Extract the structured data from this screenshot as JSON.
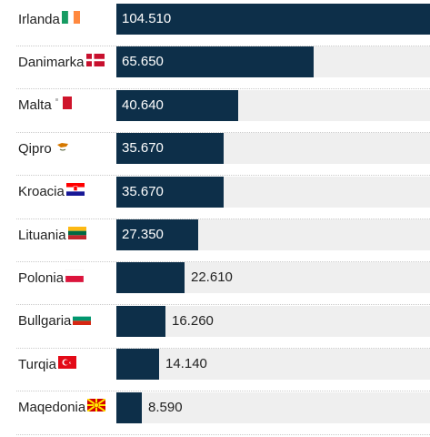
{
  "chart_data": {
    "type": "bar",
    "orientation": "horizontal",
    "categories": [
      "Irlanda",
      "Danimarka",
      "Malta",
      "Qipro",
      "Kroacia",
      "Lituania",
      "Polonia",
      "Bullgaria",
      "Turqia",
      "Maqedonia"
    ],
    "value_labels": [
      "104.510",
      "65.650",
      "40.640",
      "35.670",
      "35.670",
      "27.350",
      "22.610",
      "16.260",
      "14.140",
      "8.590"
    ],
    "values": [
      104510,
      65650,
      40640,
      35670,
      35670,
      27350,
      22610,
      16260,
      14140,
      8590
    ],
    "xlim": [
      0,
      104510
    ],
    "flags": [
      "ireland-flag",
      "denmark-flag",
      "malta-flag",
      "cyprus-flag",
      "croatia-flag",
      "lithuania-flag",
      "poland-flag",
      "bulgaria-flag",
      "turkey-flag",
      "north-macedonia-flag"
    ],
    "colors": {
      "bar": "#0d2f49",
      "track": "#efefef",
      "inside_label": "#ffffff",
      "outside_label": "#222222"
    },
    "grid": false,
    "legend": "none"
  }
}
